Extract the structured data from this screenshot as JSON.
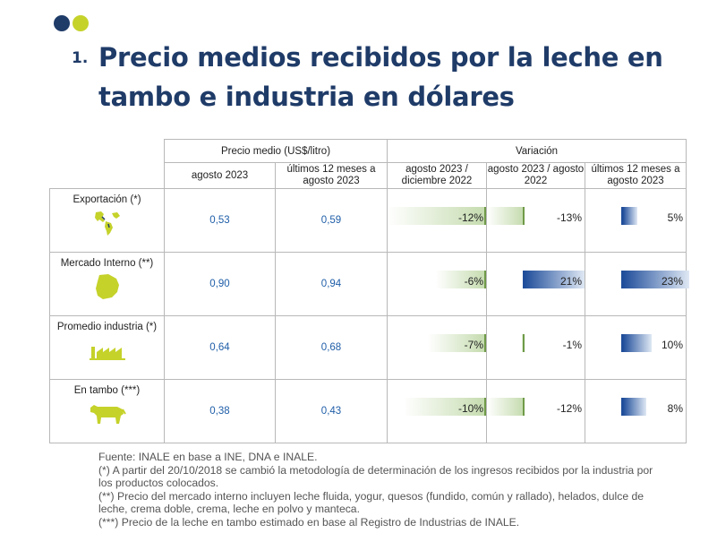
{
  "header": {
    "dot_colors": [
      "#1f3b68",
      "#c5d22a"
    ],
    "number": "1.",
    "title": "Precio medios recibidos por la leche en tambo e industria en dólares"
  },
  "table": {
    "group_price": "Precio medio (US$/litro)",
    "group_variation": "Variación",
    "col_price_1": "agosto 2023",
    "col_price_2": "últimos 12 meses a agosto 2023",
    "col_var_1": "agosto 2023 / diciembre 2022",
    "col_var_2": "agosto 2023 / agosto 2022",
    "col_var_3": "últimos 12 meses a agosto 2023",
    "rows": [
      {
        "label": "Exportación (*)",
        "icon": "world-map-icon",
        "price_1": "0,53",
        "price_2": "0,59",
        "var_1": "-12%",
        "var_2": "-13%",
        "var_3": "5%",
        "var_1_num": -12,
        "var_2_num": -13,
        "var_3_num": 5
      },
      {
        "label": "Mercado Interno (**)",
        "icon": "uruguay-map-icon",
        "price_1": "0,90",
        "price_2": "0,94",
        "var_1": "-6%",
        "var_2": "21%",
        "var_3": "23%",
        "var_1_num": -6,
        "var_2_num": 21,
        "var_3_num": 23
      },
      {
        "label": "Promedio industria (*)",
        "icon": "factory-icon",
        "price_1": "0,64",
        "price_2": "0,68",
        "var_1": "-7%",
        "var_2": "-1%",
        "var_3": "10%",
        "var_1_num": -7,
        "var_2_num": -1,
        "var_3_num": 10
      },
      {
        "label": "En tambo (***)",
        "icon": "cow-icon",
        "price_1": "0,38",
        "price_2": "0,43",
        "var_1": "-10%",
        "var_2": "-12%",
        "var_3": "8%",
        "var_1_num": -10,
        "var_2_num": -12,
        "var_3_num": 8
      }
    ],
    "colors": {
      "negative_bar": "#c6dcb0",
      "positive_bar": "#1f4d9a",
      "value_text": "#1f5ea8",
      "icon_green": "#c5d22a"
    }
  },
  "notes": [
    "Fuente: INALE en base a INE, DNA e INALE.",
    "(*) A partir del 20/10/2018 se cambió la metodología de determinación de los ingresos recibidos por la industria por los productos colocados.",
    "(**) Precio del mercado interno incluyen leche fluida, yogur, quesos (fundido, común y rallado), helados, dulce de leche, crema doble, crema, leche en polvo y manteca.",
    "(***) Precio de la leche en tambo estimado en base al Registro de Industrias de INALE."
  ]
}
